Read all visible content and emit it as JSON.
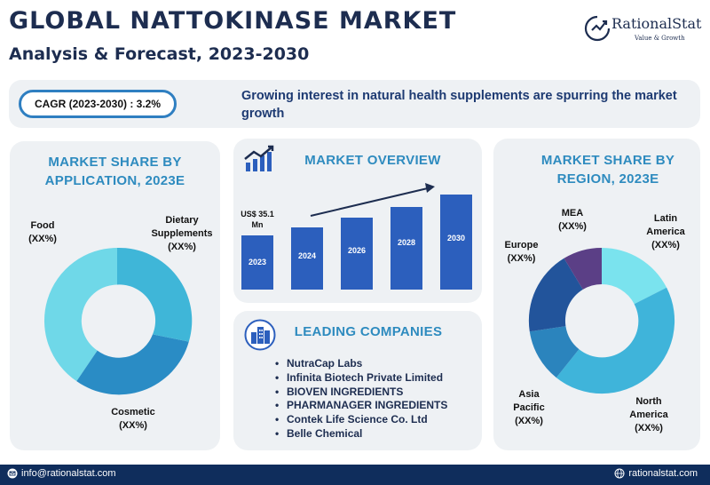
{
  "header": {
    "title": "GLOBAL NATTOKINASE MARKET",
    "subtitle": "Analysis & Forecast, 2023-2030"
  },
  "logo": {
    "name": "RationalStat",
    "tagline": "Value & Growth"
  },
  "banner": {
    "cagr": "CAGR (2023-2030) : 3.2%",
    "headline": "Growing interest in natural health supplements are spurring the market growth"
  },
  "application_panel": {
    "title": "MARKET SHARE BY APPLICATION, 2023E",
    "segments": [
      {
        "name": "Food",
        "value": "(XX%)"
      },
      {
        "name": "Dietary Supplements",
        "value": "(XX%)"
      },
      {
        "name": "Cosmetic",
        "value": "(XX%)"
      }
    ]
  },
  "overview_panel": {
    "title": "MARKET OVERVIEW",
    "value_label": "US$ 35.1 Mn",
    "bars": [
      "2023",
      "2024",
      "2026",
      "2028",
      "2030"
    ]
  },
  "companies_panel": {
    "title": "LEADING COMPANIES",
    "items": [
      "NutraCap Labs",
      "Infinita Biotech Private Limited",
      "BIOVEN INGREDIENTS",
      "PHARMANAGER INGREDIENTS",
      "Contek Life Science Co. Ltd",
      "Belle Chemical"
    ]
  },
  "region_panel": {
    "title": "MARKET SHARE BY REGION, 2023E",
    "segments": [
      {
        "name": "MEA",
        "value": "(XX%)"
      },
      {
        "name": "Latin America",
        "value": "(XX%)"
      },
      {
        "name": "Europe",
        "value": "(XX%)"
      },
      {
        "name": "Asia Pacific",
        "value": "(XX%)"
      },
      {
        "name": "North America",
        "value": "(XX%)"
      }
    ]
  },
  "footer": {
    "email": "info@rationalstat.com",
    "website": "rationalstat.com"
  },
  "colors": {
    "navy": "#1d2d50",
    "accent_blue": "#2e8bbf",
    "bar_blue": "#2c5fbd",
    "panel_bg": "#eef1f4",
    "footer_bg": "#0f2d5c"
  }
}
